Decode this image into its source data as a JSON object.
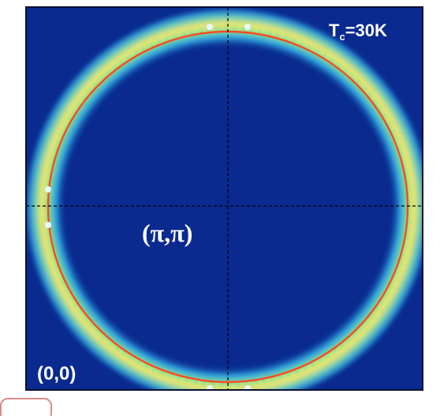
{
  "chart_data": {
    "type": "heatmap",
    "title": "",
    "xlabel": "",
    "ylabel": "",
    "annotations": {
      "temperature_label": "T",
      "temperature_subscript": "c",
      "temperature_value": "=30K",
      "center_point": "(π,π)",
      "origin_point": "(0,0)"
    },
    "grid": false,
    "crosshair_lines": [
      "vertical-center",
      "horizontal-center"
    ],
    "colors": {
      "background": "#0a2a8f",
      "ring_inner": "#39c7f0",
      "ring_mid": "#9bf58b",
      "ring_peak": "#f3e36a",
      "fit_line": "#ff4a1c",
      "crosshair": "#000000",
      "markers": "#e9f7ff"
    },
    "series": [
      {
        "name": "",
        "kind": "intensity-ring",
        "center": [
          0.5,
          0.5
        ],
        "radius": 0.43
      }
    ]
  }
}
